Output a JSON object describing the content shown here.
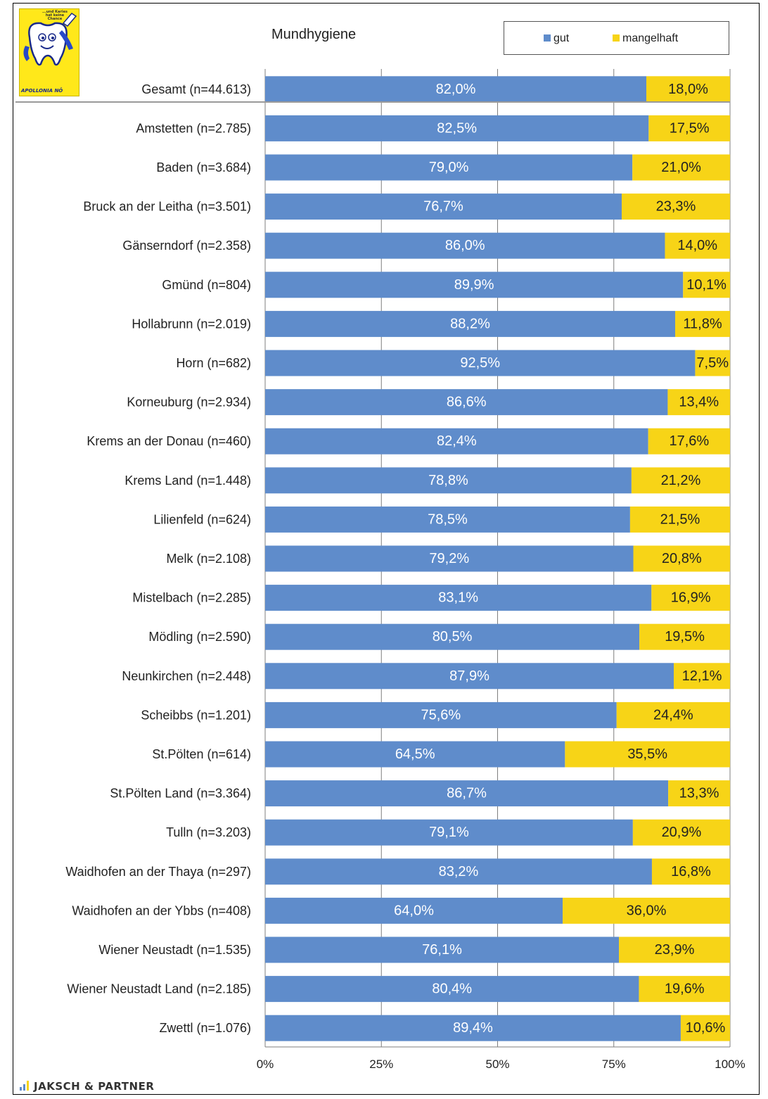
{
  "logo": {
    "text": "APOLLONIA NÖ",
    "slogan": "...und Karies hat keine Chance"
  },
  "brand": {
    "text": "JAKSCH & PARTNER"
  },
  "colors": {
    "gut": "#5f8ccb",
    "mangelhaft": "#f7d417",
    "grid": "#7f7f7f"
  },
  "chart_data": {
    "type": "bar",
    "orientation": "horizontal",
    "stacked": true,
    "title": "Mundhygiene",
    "xlabel": "",
    "ylabel": "",
    "xlim": [
      0,
      100
    ],
    "legend_position": "top-right",
    "grid": true,
    "x_ticks": [
      "0%",
      "25%",
      "50%",
      "75%",
      "100%"
    ],
    "categories": [
      "Gesamt (n=44.613)",
      "Amstetten (n=2.785)",
      "Baden (n=3.684)",
      "Bruck an der Leitha (n=3.501)",
      "Gänserndorf (n=2.358)",
      "Gmünd (n=804)",
      "Hollabrunn (n=2.019)",
      "Horn (n=682)",
      "Korneuburg (n=2.934)",
      "Krems an der Donau (n=460)",
      "Krems Land (n=1.448)",
      "Lilienfeld (n=624)",
      "Melk (n=2.108)",
      "Mistelbach (n=2.285)",
      "Mödling (n=2.590)",
      "Neunkirchen (n=2.448)",
      "Scheibbs (n=1.201)",
      "St.Pölten (n=614)",
      "St.Pölten Land (n=3.364)",
      "Tulln (n=3.203)",
      "Waidhofen an der Thaya (n=297)",
      "Waidhofen an der Ybbs (n=408)",
      "Wiener Neustadt (n=1.535)",
      "Wiener Neustadt Land (n=2.185)",
      "Zwettl (n=1.076)"
    ],
    "series": [
      {
        "name": "gut",
        "values": [
          82.0,
          82.5,
          79.0,
          76.7,
          86.0,
          89.9,
          88.2,
          92.5,
          86.6,
          82.4,
          78.8,
          78.5,
          79.2,
          83.1,
          80.5,
          87.9,
          75.6,
          64.5,
          86.7,
          79.1,
          83.2,
          64.0,
          76.1,
          80.4,
          89.4
        ],
        "labels": [
          "82,0%",
          "82,5%",
          "79,0%",
          "76,7%",
          "86,0%",
          "89,9%",
          "88,2%",
          "92,5%",
          "86,6%",
          "82,4%",
          "78,8%",
          "78,5%",
          "79,2%",
          "83,1%",
          "80,5%",
          "87,9%",
          "75,6%",
          "64,5%",
          "86,7%",
          "79,1%",
          "83,2%",
          "64,0%",
          "76,1%",
          "80,4%",
          "89,4%"
        ]
      },
      {
        "name": "mangelhaft",
        "values": [
          18.0,
          17.5,
          21.0,
          23.3,
          14.0,
          10.1,
          11.8,
          7.5,
          13.4,
          17.6,
          21.2,
          21.5,
          20.8,
          16.9,
          19.5,
          12.1,
          24.4,
          35.5,
          13.3,
          20.9,
          16.8,
          36.0,
          23.9,
          19.6,
          10.6
        ],
        "labels": [
          "18,0%",
          "17,5%",
          "21,0%",
          "23,3%",
          "14,0%",
          "10,1%",
          "11,8%",
          "7,5%",
          "13,4%",
          "17,6%",
          "21,2%",
          "21,5%",
          "20,8%",
          "16,9%",
          "19,5%",
          "12,1%",
          "24,4%",
          "35,5%",
          "13,3%",
          "20,9%",
          "16,8%",
          "36,0%",
          "23,9%",
          "19,6%",
          "10,6%"
        ]
      }
    ]
  }
}
